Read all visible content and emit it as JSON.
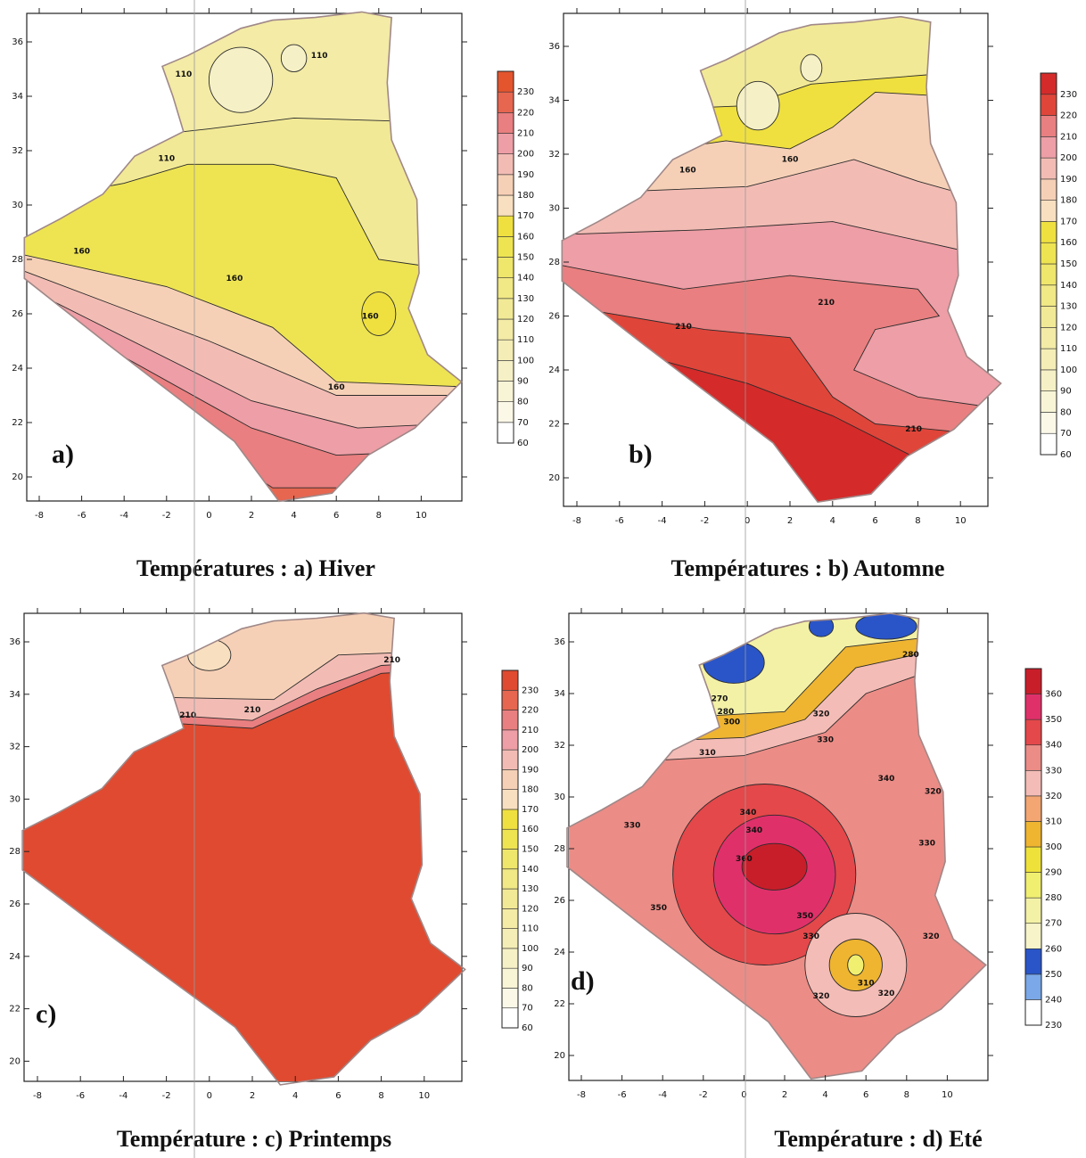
{
  "panels": [
    {
      "title": "Températures : a) Hiver",
      "label": "a)",
      "xticks": [
        -8,
        -6,
        -4,
        -2,
        0,
        2,
        4,
        6,
        8,
        10
      ],
      "yticks": [
        20,
        22,
        24,
        26,
        28,
        30,
        32,
        34,
        36
      ],
      "colorbar": {
        "levels": [
          60,
          70,
          80,
          90,
          100,
          110,
          120,
          130,
          140,
          150,
          160,
          170,
          180,
          190,
          200,
          210,
          220,
          230
        ],
        "colors": [
          "#ffffff",
          "#fbf8e8",
          "#f8f4d6",
          "#f6f0c6",
          "#f4edb6",
          "#f3eba6",
          "#f2e996",
          "#f1e886",
          "#efe66c",
          "#eee452",
          "#efe040",
          "#f8dfc0",
          "#f6d0b6",
          "#f2bcb4",
          "#ee9ea6",
          "#e97f80",
          "#e66650",
          "#e4552e"
        ]
      },
      "contour_labels": [
        110,
        110,
        110,
        160,
        160,
        160,
        160
      ]
    },
    {
      "title": "Températures : b) Automne",
      "label": "b)",
      "xticks": [
        -8,
        -6,
        -4,
        -2,
        0,
        2,
        4,
        6,
        8,
        10
      ],
      "yticks": [
        20,
        22,
        24,
        26,
        28,
        30,
        32,
        34,
        36
      ],
      "colorbar": {
        "levels": [
          60,
          70,
          80,
          90,
          100,
          110,
          120,
          130,
          140,
          150,
          160,
          170,
          180,
          190,
          200,
          210,
          220,
          230
        ],
        "colors": [
          "#ffffff",
          "#fbf8e8",
          "#f8f4d6",
          "#f6f0c6",
          "#f4edb6",
          "#f3eba6",
          "#f2e996",
          "#f1e886",
          "#efe66c",
          "#eee452",
          "#efe040",
          "#f8dfc0",
          "#f6d0b6",
          "#f2bcb4",
          "#ee9ea6",
          "#e97f80",
          "#e0453a",
          "#d42a2a"
        ]
      },
      "contour_labels": [
        160,
        160,
        210,
        210,
        210
      ]
    },
    {
      "title": "Température : c) Printemps",
      "label": "c)",
      "xticks": [
        -8,
        -6,
        -4,
        -2,
        0,
        2,
        4,
        6,
        8,
        10
      ],
      "yticks": [
        20,
        22,
        24,
        26,
        28,
        30,
        32,
        34,
        36
      ],
      "colorbar": {
        "levels": [
          60,
          70,
          80,
          90,
          100,
          110,
          120,
          130,
          140,
          150,
          160,
          170,
          180,
          190,
          200,
          210,
          220,
          230
        ],
        "colors": [
          "#ffffff",
          "#fbf8e8",
          "#f8f4d6",
          "#f6f0c6",
          "#f4edb6",
          "#f3eba6",
          "#f2e996",
          "#f1e886",
          "#efe66c",
          "#eee452",
          "#efe040",
          "#f8dfc0",
          "#f6d0b6",
          "#f2bcb4",
          "#ee9ea6",
          "#e97f80",
          "#e66650",
          "#e04a30"
        ]
      },
      "contour_labels": [
        210,
        210,
        210
      ]
    },
    {
      "title": "Température : d) Eté",
      "label": "d)",
      "xticks": [
        -8,
        -6,
        -4,
        -2,
        0,
        2,
        4,
        6,
        8,
        10
      ],
      "yticks": [
        20,
        22,
        24,
        26,
        28,
        30,
        32,
        34,
        36
      ],
      "colorbar": {
        "levels": [
          230,
          240,
          250,
          260,
          270,
          280,
          290,
          300,
          310,
          320,
          330,
          340,
          350,
          360
        ],
        "colors": [
          "#ffffff",
          "#7aa8e8",
          "#2a55c8",
          "#f6f4c8",
          "#f3f1a6",
          "#f1ef70",
          "#eee23a",
          "#efb531",
          "#f3a672",
          "#f4bcb6",
          "#ec8c86",
          "#e4484a",
          "#e0306a",
          "#c81e2a"
        ]
      },
      "contour_labels": [
        270,
        280,
        300,
        310,
        320,
        330,
        340,
        320,
        330,
        340,
        340,
        360,
        350,
        350,
        330,
        330,
        320,
        310,
        320,
        320,
        280
      ]
    }
  ]
}
